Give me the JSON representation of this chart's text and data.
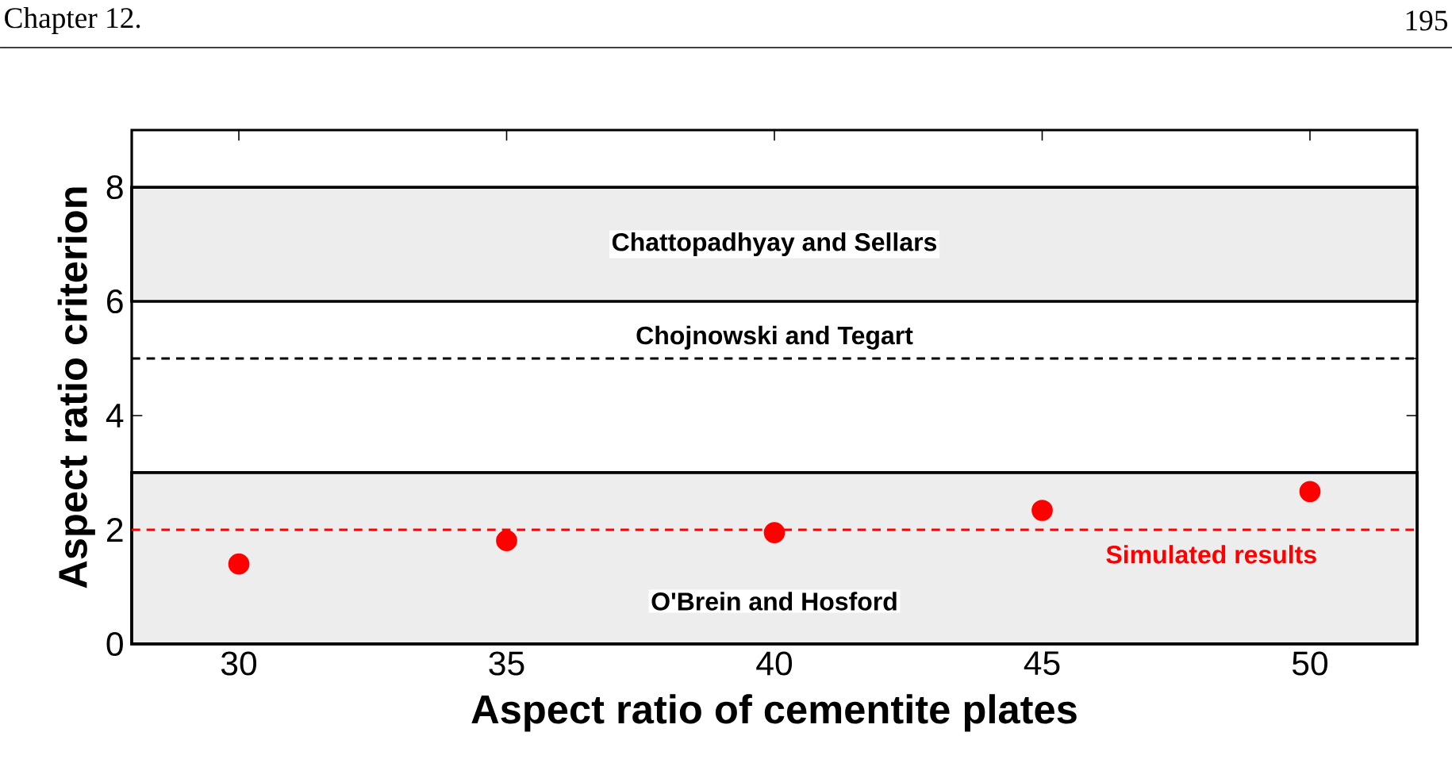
{
  "chart_data": {
    "type": "scatter",
    "xlabel": "Aspect ratio of cementite plates",
    "ylabel": "Aspect ratio criterion",
    "x": [
      30,
      35,
      40,
      45,
      50
    ],
    "values": [
      1.4,
      1.81,
      1.95,
      2.34,
      2.67
    ],
    "color": "#ff0000",
    "xlim": [
      28,
      52
    ],
    "xticks": [
      30,
      35,
      40,
      45,
      50
    ],
    "ylim": [
      0,
      9
    ],
    "yticks": [
      0,
      2,
      4,
      6,
      8
    ],
    "bands": [
      {
        "axis": "y",
        "from": 6,
        "to": 8,
        "label": "Chattopadhyay and Sellars",
        "color": "#000000"
      },
      {
        "axis": "y",
        "from": 0,
        "to": 3,
        "label": "O'Brein and Hosford",
        "color": "#000000"
      }
    ],
    "ref_lines": [
      {
        "axis": "y",
        "value": 5,
        "label": "Chojnowski and Tegart",
        "color": "#000000",
        "line_style": "dashed"
      },
      {
        "axis": "y",
        "value": 2,
        "label": "Simulated results",
        "color": "#ff0000",
        "line_style": "dashed"
      }
    ],
    "annotations": [
      "Chapter 12.",
      "195"
    ]
  }
}
